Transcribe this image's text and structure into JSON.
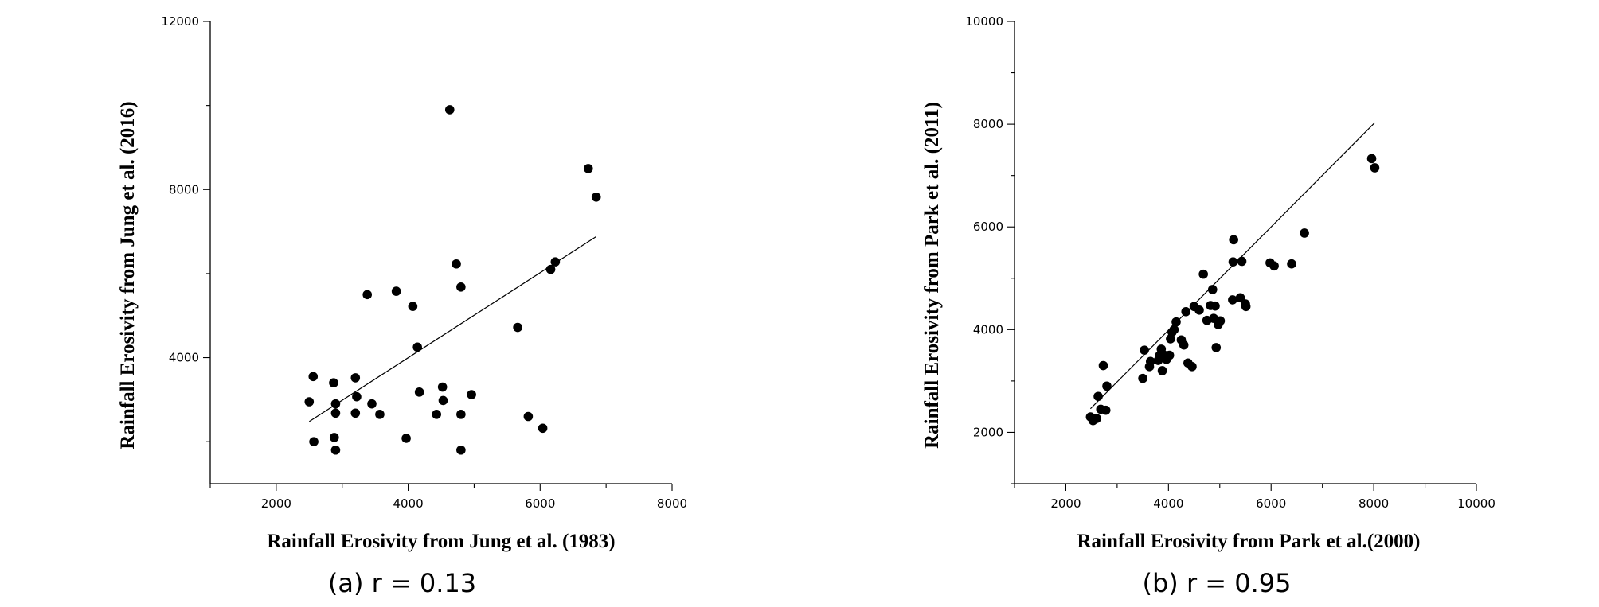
{
  "chart_data": [
    {
      "type": "scatter",
      "caption": "(a) r = 0.13",
      "xlabel": "Rainfall Erosivity from Jung et al. (1983)",
      "ylabel": "Rainfall Erosivity from Jung et al. (2016)",
      "xlim": [
        1000,
        8000
      ],
      "ylim": [
        1000,
        12000
      ],
      "xticks": [
        2000,
        4000,
        6000,
        8000
      ],
      "xticks_minor": [
        1000,
        3000,
        5000,
        7000
      ],
      "yticks": [
        4000,
        8000,
        12000
      ],
      "yticks_minor": [
        2000,
        6000,
        10000
      ],
      "grid": false,
      "points": [
        {
          "x": 2500,
          "y": 2950
        },
        {
          "x": 2560,
          "y": 3550
        },
        {
          "x": 2570,
          "y": 2000
        },
        {
          "x": 2870,
          "y": 3400
        },
        {
          "x": 2880,
          "y": 2100
        },
        {
          "x": 2900,
          "y": 2900
        },
        {
          "x": 2900,
          "y": 2680
        },
        {
          "x": 2900,
          "y": 1800
        },
        {
          "x": 3200,
          "y": 3520
        },
        {
          "x": 3200,
          "y": 2680
        },
        {
          "x": 3220,
          "y": 3070
        },
        {
          "x": 3380,
          "y": 5500
        },
        {
          "x": 3450,
          "y": 2900
        },
        {
          "x": 3570,
          "y": 2650
        },
        {
          "x": 3820,
          "y": 5580
        },
        {
          "x": 3970,
          "y": 2080
        },
        {
          "x": 4070,
          "y": 5220
        },
        {
          "x": 4140,
          "y": 4250
        },
        {
          "x": 4170,
          "y": 3180
        },
        {
          "x": 4430,
          "y": 2650
        },
        {
          "x": 4520,
          "y": 3300
        },
        {
          "x": 4530,
          "y": 2980
        },
        {
          "x": 4630,
          "y": 9900
        },
        {
          "x": 4730,
          "y": 6230
        },
        {
          "x": 4800,
          "y": 5680
        },
        {
          "x": 4800,
          "y": 2650
        },
        {
          "x": 4800,
          "y": 1800
        },
        {
          "x": 4960,
          "y": 3120
        },
        {
          "x": 5660,
          "y": 4720
        },
        {
          "x": 5820,
          "y": 2600
        },
        {
          "x": 6040,
          "y": 2320
        },
        {
          "x": 6160,
          "y": 6100
        },
        {
          "x": 6230,
          "y": 6280
        },
        {
          "x": 6730,
          "y": 8500
        },
        {
          "x": 6850,
          "y": 7820
        }
      ],
      "fit_line": {
        "x": [
          2500,
          6850
        ],
        "y": [
          2480,
          6880
        ]
      }
    },
    {
      "type": "scatter",
      "caption": "(b) r = 0.95",
      "xlabel": "Rainfall Erosivity from Park et al.(2000)",
      "ylabel": "Rainfall Erosivity from Park et al. (2011)",
      "xlim": [
        1000,
        10000
      ],
      "ylim": [
        1000,
        10000
      ],
      "xticks": [
        2000,
        4000,
        6000,
        8000,
        10000
      ],
      "xticks_minor": [
        1000,
        3000,
        5000,
        7000,
        9000
      ],
      "yticks": [
        2000,
        4000,
        6000,
        8000,
        10000
      ],
      "yticks_minor": [
        1000,
        3000,
        5000,
        7000,
        9000
      ],
      "grid": false,
      "points": [
        {
          "x": 2480,
          "y": 2300
        },
        {
          "x": 2530,
          "y": 2230
        },
        {
          "x": 2600,
          "y": 2270
        },
        {
          "x": 2630,
          "y": 2700
        },
        {
          "x": 2680,
          "y": 2450
        },
        {
          "x": 2730,
          "y": 3300
        },
        {
          "x": 2780,
          "y": 2430
        },
        {
          "x": 2800,
          "y": 2900
        },
        {
          "x": 3500,
          "y": 3050
        },
        {
          "x": 3530,
          "y": 3600
        },
        {
          "x": 3630,
          "y": 3280
        },
        {
          "x": 3650,
          "y": 3380
        },
        {
          "x": 3800,
          "y": 3400
        },
        {
          "x": 3830,
          "y": 3500
        },
        {
          "x": 3860,
          "y": 3620
        },
        {
          "x": 3880,
          "y": 3200
        },
        {
          "x": 3920,
          "y": 3500
        },
        {
          "x": 3960,
          "y": 3420
        },
        {
          "x": 4020,
          "y": 3500
        },
        {
          "x": 4040,
          "y": 3820
        },
        {
          "x": 4070,
          "y": 3950
        },
        {
          "x": 4110,
          "y": 4000
        },
        {
          "x": 4150,
          "y": 4150
        },
        {
          "x": 4250,
          "y": 3800
        },
        {
          "x": 4300,
          "y": 3700
        },
        {
          "x": 4340,
          "y": 4350
        },
        {
          "x": 4380,
          "y": 3350
        },
        {
          "x": 4460,
          "y": 3280
        },
        {
          "x": 4500,
          "y": 4450
        },
        {
          "x": 4600,
          "y": 4380
        },
        {
          "x": 4680,
          "y": 5080
        },
        {
          "x": 4750,
          "y": 4180
        },
        {
          "x": 4820,
          "y": 4470
        },
        {
          "x": 4860,
          "y": 4780
        },
        {
          "x": 4880,
          "y": 4220
        },
        {
          "x": 4910,
          "y": 4460
        },
        {
          "x": 4930,
          "y": 3650
        },
        {
          "x": 4970,
          "y": 4100
        },
        {
          "x": 5010,
          "y": 4170
        },
        {
          "x": 5250,
          "y": 4580
        },
        {
          "x": 5260,
          "y": 5320
        },
        {
          "x": 5270,
          "y": 5750
        },
        {
          "x": 5400,
          "y": 4620
        },
        {
          "x": 5430,
          "y": 5330
        },
        {
          "x": 5500,
          "y": 4500
        },
        {
          "x": 5510,
          "y": 4450
        },
        {
          "x": 5980,
          "y": 5300
        },
        {
          "x": 6060,
          "y": 5240
        },
        {
          "x": 6400,
          "y": 5280
        },
        {
          "x": 6650,
          "y": 5880
        },
        {
          "x": 7960,
          "y": 7330
        },
        {
          "x": 8020,
          "y": 7150
        }
      ],
      "fit_line": {
        "x": [
          2480,
          8020
        ],
        "y": [
          2460,
          8030
        ]
      }
    }
  ]
}
